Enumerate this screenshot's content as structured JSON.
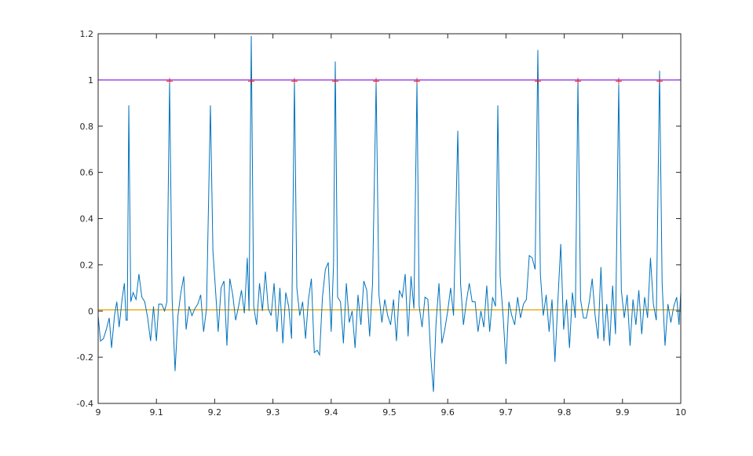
{
  "chart_data": {
    "type": "line",
    "xlim": [
      9,
      10
    ],
    "ylim": [
      -0.4,
      1.2
    ],
    "xticks": [
      9,
      9.1,
      9.2,
      9.3,
      9.4,
      9.5,
      9.6,
      9.7,
      9.8,
      9.9,
      10
    ],
    "yticks": [
      -0.4,
      -0.2,
      0,
      0.2,
      0.4,
      0.6,
      0.8,
      1,
      1.2
    ],
    "series": [
      {
        "color": "#0072bd",
        "x": [
          9.0,
          9.004,
          9.009,
          9.014,
          9.019,
          9.023,
          9.028,
          9.032,
          9.036,
          9.041,
          9.045,
          9.048,
          9.05,
          9.0526,
          9.056,
          9.06,
          9.065,
          9.07,
          9.075,
          9.08,
          9.085,
          9.09,
          9.095,
          9.1,
          9.104,
          9.109,
          9.114,
          9.118,
          9.1226,
          9.127,
          9.132,
          9.137,
          9.142,
          9.147,
          9.151,
          9.156,
          9.161,
          9.166,
          9.171,
          9.176,
          9.181,
          9.186,
          9.1927,
          9.197,
          9.202,
          9.206,
          9.211,
          9.216,
          9.221,
          9.226,
          9.231,
          9.236,
          9.241,
          9.246,
          9.251,
          9.256,
          9.259,
          9.2628,
          9.267,
          9.272,
          9.277,
          9.282,
          9.287,
          9.292,
          9.297,
          9.302,
          9.307,
          9.312,
          9.317,
          9.322,
          9.327,
          9.332,
          9.3369,
          9.341,
          9.346,
          9.351,
          9.356,
          9.361,
          9.366,
          9.371,
          9.376,
          9.38,
          9.385,
          9.39,
          9.395,
          9.4,
          9.404,
          9.407,
          9.411,
          9.416,
          9.421,
          9.426,
          9.431,
          9.436,
          9.441,
          9.446,
          9.451,
          9.456,
          9.461,
          9.466,
          9.471,
          9.4771,
          9.482,
          9.487,
          9.492,
          9.497,
          9.502,
          9.507,
          9.512,
          9.517,
          9.522,
          9.527,
          9.532,
          9.537,
          9.542,
          9.5472,
          9.551,
          9.556,
          9.561,
          9.566,
          9.571,
          9.5755,
          9.58,
          9.585,
          9.59,
          9.595,
          9.6,
          9.605,
          9.61,
          9.6173,
          9.622,
          9.627,
          9.632,
          9.637,
          9.642,
          9.647,
          9.652,
          9.657,
          9.662,
          9.667,
          9.672,
          9.677,
          9.682,
          9.686,
          9.69,
          9.695,
          9.7,
          9.705,
          9.71,
          9.715,
          9.72,
          9.725,
          9.73,
          9.735,
          9.74,
          9.745,
          9.75,
          9.7547,
          9.759,
          9.764,
          9.769,
          9.774,
          9.779,
          9.784,
          9.789,
          9.794,
          9.799,
          9.804,
          9.809,
          9.814,
          9.819,
          9.8235,
          9.828,
          9.833,
          9.838,
          9.843,
          9.848,
          9.853,
          9.858,
          9.863,
          9.868,
          9.873,
          9.878,
          9.883,
          9.888,
          9.8935,
          9.898,
          9.903,
          9.908,
          9.913,
          9.918,
          9.923,
          9.928,
          9.933,
          9.938,
          9.943,
          9.948,
          9.953,
          9.958,
          9.9636,
          9.968,
          9.973,
          9.978,
          9.983,
          9.988,
          9.993,
          9.997,
          10.0
        ],
        "values": [
          -0.02,
          -0.13,
          -0.12,
          -0.08,
          -0.03,
          -0.16,
          -0.02,
          0.04,
          -0.07,
          0.05,
          0.12,
          -0.04,
          -0.04,
          0.89,
          0.04,
          0.08,
          0.05,
          0.16,
          0.06,
          0.04,
          -0.03,
          -0.13,
          0.02,
          -0.13,
          0.03,
          0.03,
          0.0,
          0.04,
          0.99,
          0.05,
          -0.26,
          -0.02,
          0.08,
          0.15,
          -0.08,
          0.02,
          -0.02,
          0.01,
          0.03,
          0.07,
          -0.09,
          0.01,
          0.89,
          0.26,
          0.07,
          -0.09,
          0.1,
          0.13,
          -0.15,
          0.14,
          0.07,
          -0.04,
          0.02,
          0.09,
          -0.01,
          0.23,
          0.0,
          1.19,
          0.02,
          -0.06,
          0.12,
          0.0,
          0.17,
          0.01,
          -0.02,
          0.12,
          -0.09,
          0.1,
          -0.14,
          0.08,
          0.02,
          -0.12,
          1.0,
          0.1,
          -0.02,
          0.04,
          -0.12,
          0.05,
          0.14,
          -0.18,
          -0.17,
          -0.19,
          0.06,
          0.18,
          0.21,
          -0.09,
          0.2,
          1.08,
          0.06,
          0.04,
          -0.14,
          0.12,
          -0.05,
          0.0,
          -0.16,
          0.07,
          -0.06,
          0.13,
          0.09,
          -0.11,
          0.12,
          0.99,
          0.07,
          -0.05,
          0.05,
          -0.02,
          -0.06,
          0.05,
          -0.13,
          0.09,
          0.06,
          0.16,
          -0.11,
          0.15,
          0.01,
          0.99,
          0.02,
          -0.07,
          0.06,
          0.05,
          -0.2,
          -0.35,
          -0.05,
          0.12,
          -0.14,
          -0.08,
          0.0,
          0.1,
          -0.02,
          0.78,
          0.12,
          -0.06,
          0.04,
          0.12,
          0.04,
          0.04,
          -0.09,
          0.0,
          -0.07,
          0.11,
          -0.09,
          0.06,
          0.02,
          0.89,
          0.15,
          -0.02,
          -0.23,
          0.04,
          -0.02,
          -0.06,
          0.06,
          -0.03,
          0.03,
          0.05,
          0.24,
          0.23,
          0.18,
          1.13,
          0.16,
          -0.02,
          0.07,
          -0.09,
          0.05,
          -0.22,
          0.04,
          0.29,
          -0.08,
          0.05,
          -0.16,
          0.08,
          -0.03,
          1.0,
          0.05,
          -0.03,
          -0.03,
          0.04,
          0.14,
          -0.02,
          -0.12,
          0.19,
          -0.13,
          0.03,
          -0.15,
          0.11,
          -0.1,
          0.98,
          0.09,
          -0.03,
          0.07,
          -0.15,
          0.05,
          -0.06,
          0.09,
          -0.1,
          0.06,
          -0.03,
          0.23,
          0.03,
          -0.04,
          1.04,
          0.12,
          -0.15,
          0.03,
          -0.05,
          0.02,
          0.06,
          -0.06,
          0.08
        ]
      }
    ],
    "markers": {
      "color": "#d62728",
      "x": [
        9.1226,
        9.2628,
        9.3369,
        9.407,
        9.4771,
        9.5472,
        9.7547,
        9.8235,
        9.8935,
        9.9636
      ],
      "values": [
        0.995,
        0.995,
        0.995,
        0.995,
        0.995,
        0.995,
        0.995,
        0.995,
        0.995,
        0.995
      ]
    },
    "hlines": [
      {
        "value": 1.0,
        "color": "#a14be8"
      },
      {
        "value": 0.005,
        "color": "#edb120"
      }
    ]
  }
}
